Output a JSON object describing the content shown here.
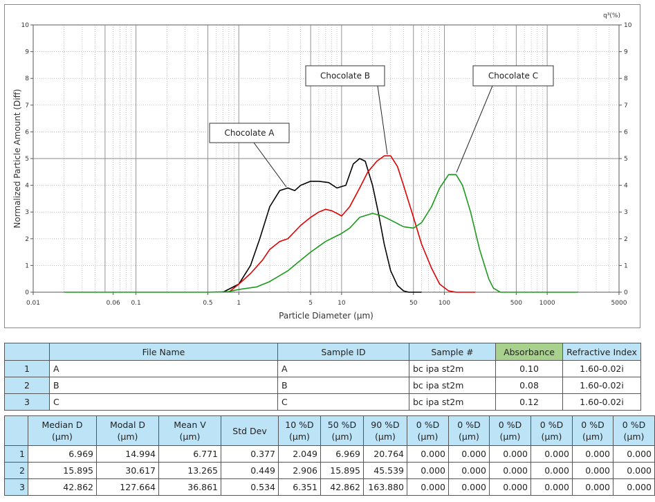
{
  "chart_data": {
    "type": "line",
    "xlabel": "Particle Diameter (µm)",
    "ylabel": "Normalized Particle Amount (Diff)",
    "ylabel_right": "q³(%)",
    "x_scale": "log",
    "xlim": [
      0.01,
      5000
    ],
    "ylim": [
      0,
      10
    ],
    "x_tick_labels": [
      "0.01",
      "0.06",
      "0.1",
      "0.5",
      "1",
      "5",
      "10",
      "50",
      "100",
      "500",
      "1000",
      "5000"
    ],
    "y_tick_labels": [
      "0",
      "1",
      "2",
      "3",
      "4",
      "5",
      "6",
      "7",
      "8",
      "9",
      "10"
    ],
    "grid": true,
    "series": [
      {
        "name": "Chocolate A",
        "color": "#000000",
        "x": [
          0.7,
          1.0,
          1.3,
          1.6,
          2.0,
          2.5,
          3.0,
          3.5,
          4.0,
          5.0,
          6.0,
          7.5,
          9.0,
          11,
          13,
          15,
          17,
          20,
          23,
          26,
          30,
          35,
          40,
          45,
          50,
          60
        ],
        "y": [
          0,
          0.3,
          1.0,
          2.0,
          3.2,
          3.8,
          3.9,
          3.8,
          4.0,
          4.15,
          4.15,
          4.1,
          3.9,
          4.0,
          4.8,
          5.0,
          4.9,
          4.0,
          2.9,
          1.8,
          0.8,
          0.25,
          0.05,
          0,
          0,
          0
        ]
      },
      {
        "name": "Chocolate B",
        "color": "#e00000",
        "x": [
          0.8,
          1.0,
          1.3,
          1.7,
          2.0,
          2.5,
          3.0,
          4.0,
          5.0,
          6.0,
          7.0,
          8.0,
          9.0,
          10,
          12,
          15,
          18,
          22,
          26,
          30,
          35,
          40,
          50,
          60,
          75,
          90,
          110,
          130,
          150,
          200
        ],
        "y": [
          0,
          0.3,
          0.7,
          1.2,
          1.6,
          1.9,
          2.0,
          2.5,
          2.8,
          3.0,
          3.1,
          3.05,
          2.95,
          2.85,
          3.2,
          3.9,
          4.5,
          4.9,
          5.1,
          5.1,
          4.7,
          4.0,
          2.8,
          1.8,
          0.9,
          0.3,
          0.05,
          0,
          0,
          0
        ]
      },
      {
        "name": "Chocolate C",
        "color": "#1a9a1a",
        "x": [
          0.02,
          0.5,
          0.8,
          1.0,
          1.5,
          2.0,
          3.0,
          4.0,
          5.0,
          7.0,
          10,
          12,
          15,
          20,
          25,
          30,
          40,
          50,
          60,
          75,
          90,
          110,
          130,
          150,
          180,
          220,
          270,
          300,
          350,
          2000
        ],
        "y": [
          0,
          0,
          0.02,
          0.1,
          0.2,
          0.4,
          0.8,
          1.2,
          1.5,
          1.9,
          2.2,
          2.4,
          2.8,
          2.95,
          2.85,
          2.7,
          2.45,
          2.4,
          2.6,
          3.2,
          3.9,
          4.4,
          4.4,
          4.0,
          3.0,
          1.6,
          0.5,
          0.15,
          0,
          0
        ]
      }
    ]
  },
  "labels": [
    {
      "text": "Chocolate A"
    },
    {
      "text": "Chocolate B"
    },
    {
      "text": "Chocolate C"
    }
  ],
  "info_table": {
    "headers": [
      "File Name",
      "Sample ID",
      "Sample #",
      "Absorbance",
      "Refractive Index"
    ],
    "rows": [
      {
        "idx": "1",
        "file": "A",
        "sample_id": "A",
        "sample_no": "bc ipa st2m",
        "absorbance": "0.10",
        "ri": "1.60-0.02i"
      },
      {
        "idx": "2",
        "file": "B",
        "sample_id": "B",
        "sample_no": "bc ipa st2m",
        "absorbance": "0.08",
        "ri": "1.60-0.02i"
      },
      {
        "idx": "3",
        "file": "C",
        "sample_id": "C",
        "sample_no": "bc ipa st2m",
        "absorbance": "0.12",
        "ri": "1.60-0.02i"
      }
    ]
  },
  "stats_table": {
    "headers": [
      {
        "l1": "Median D",
        "l2": "(µm)"
      },
      {
        "l1": "Modal D",
        "l2": "(µm)"
      },
      {
        "l1": "Mean V",
        "l2": "(µm)"
      },
      {
        "l1": "Std Dev",
        "l2": ""
      },
      {
        "l1": "10 %D",
        "l2": "(µm)"
      },
      {
        "l1": "50 %D",
        "l2": "(µm)"
      },
      {
        "l1": "90 %D",
        "l2": "(µm)"
      },
      {
        "l1": "0 %D",
        "l2": "(µm)"
      },
      {
        "l1": "0 %D",
        "l2": "(µm)"
      },
      {
        "l1": "0 %D",
        "l2": "(µm)"
      },
      {
        "l1": "0 %D",
        "l2": "(µm)"
      },
      {
        "l1": "0 %D",
        "l2": "(µm)"
      },
      {
        "l1": "0 %D",
        "l2": "(µm)"
      }
    ],
    "rows": [
      {
        "idx": "1",
        "values": [
          "6.969",
          "14.994",
          "6.771",
          "0.377",
          "2.049",
          "6.969",
          "20.764",
          "0.000",
          "0.000",
          "0.000",
          "0.000",
          "0.000",
          "0.000"
        ]
      },
      {
        "idx": "2",
        "values": [
          "15.895",
          "30.617",
          "13.265",
          "0.449",
          "2.906",
          "15.895",
          "45.539",
          "0.000",
          "0.000",
          "0.000",
          "0.000",
          "0.000",
          "0.000"
        ]
      },
      {
        "idx": "3",
        "values": [
          "42.862",
          "127.664",
          "36.861",
          "0.534",
          "6.351",
          "42.862",
          "163.880",
          "0.000",
          "0.000",
          "0.000",
          "0.000",
          "0.000",
          "0.000"
        ]
      }
    ]
  }
}
